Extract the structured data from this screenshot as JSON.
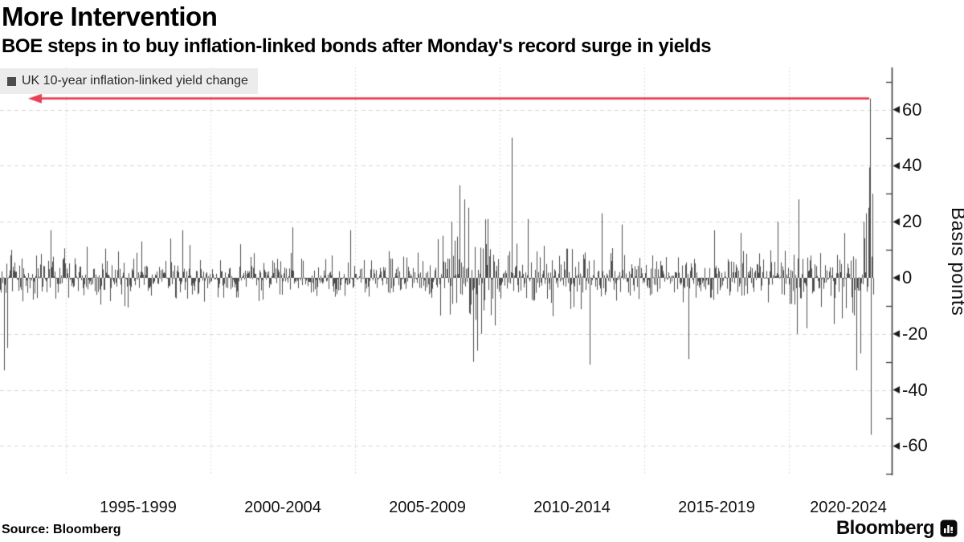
{
  "header": {
    "title": "More Intervention",
    "subtitle": "BOE steps in to buy inflation-linked bonds after Monday's record surge in yields"
  },
  "legend": {
    "label": "UK 10-year inflation-linked yield change",
    "marker_color": "#4d4d4d"
  },
  "source": {
    "label": "Source: Bloomberg"
  },
  "branding": {
    "logo_text": "Bloomberg"
  },
  "chart_data": {
    "type": "bar",
    "title": "More Intervention",
    "series_name": "UK 10-year inflation-linked yield change",
    "xlabel": "",
    "ylabel": "Basis points",
    "ylim": [
      -75,
      75
    ],
    "y_ticks_major": [
      60,
      40,
      20,
      0,
      -20,
      -40,
      -60
    ],
    "y_ticks_minor": [
      70,
      50,
      30,
      10,
      -10,
      -30,
      -50,
      -70
    ],
    "x_bin_labels": [
      "1995-1999",
      "2000-2004",
      "2005-2009",
      "2010-2014",
      "2015-2019",
      "2020-2024"
    ],
    "x_range_years": [
      1992.7,
      2022.9
    ],
    "grid": {
      "h_values": [
        60,
        40,
        20,
        -20,
        -40,
        -60
      ],
      "v_years": [
        1995,
        2000,
        2005,
        2010,
        2015,
        2020
      ]
    },
    "bar_color": "#4d4d4d",
    "noise_envelope_bp": [
      {
        "from": 1992.7,
        "to": 1995.0,
        "sigma": 4.5
      },
      {
        "from": 1995.0,
        "to": 2000.0,
        "sigma": 3.8
      },
      {
        "from": 2000.0,
        "to": 2007.5,
        "sigma": 3.4
      },
      {
        "from": 2007.5,
        "to": 2010.0,
        "sigma": 6.5
      },
      {
        "from": 2010.0,
        "to": 2012.5,
        "sigma": 4.4
      },
      {
        "from": 2012.5,
        "to": 2016.0,
        "sigma": 4.0
      },
      {
        "from": 2016.0,
        "to": 2020.0,
        "sigma": 3.8
      },
      {
        "from": 2020.0,
        "to": 2021.5,
        "sigma": 5.0
      },
      {
        "from": 2021.5,
        "to": 2022.9,
        "sigma": 7.0
      }
    ],
    "notable_moves": [
      [
        1992.85,
        -33
      ],
      [
        1992.95,
        -25
      ],
      [
        1994.45,
        17
      ],
      [
        1997.6,
        13
      ],
      [
        1998.6,
        14
      ],
      [
        1999.0,
        17
      ],
      [
        2001.0,
        12
      ],
      [
        2002.8,
        18
      ],
      [
        2004.8,
        17
      ],
      [
        2008.0,
        15
      ],
      [
        2008.3,
        20
      ],
      [
        2008.6,
        33
      ],
      [
        2008.75,
        28
      ],
      [
        2008.9,
        25
      ],
      [
        2009.05,
        -30
      ],
      [
        2009.2,
        -26
      ],
      [
        2009.35,
        -20
      ],
      [
        2009.55,
        21
      ],
      [
        2009.8,
        -17
      ],
      [
        2010.4,
        50
      ],
      [
        2010.95,
        21
      ],
      [
        2013.1,
        -31
      ],
      [
        2013.5,
        23
      ],
      [
        2014.2,
        19
      ],
      [
        2016.5,
        -29
      ],
      [
        2017.4,
        17
      ],
      [
        2018.3,
        16
      ],
      [
        2019.6,
        20
      ],
      [
        2020.25,
        -20
      ],
      [
        2020.3,
        28
      ],
      [
        2020.6,
        -18
      ],
      [
        2021.9,
        16
      ],
      [
        2022.3,
        -33
      ],
      [
        2022.45,
        -27
      ],
      [
        2022.55,
        20
      ],
      [
        2022.65,
        23
      ],
      [
        2022.72,
        25
      ],
      [
        2022.78,
        64
      ],
      [
        2022.81,
        -56
      ],
      [
        2022.86,
        30
      ]
    ],
    "record_move": {
      "year": 2022.78,
      "bp": 64
    },
    "annotation_arrow": {
      "bp": 64,
      "direction": "left",
      "color": "#e84054"
    },
    "seed": 20221011,
    "legend_position": "top-left",
    "grid_on": true
  }
}
